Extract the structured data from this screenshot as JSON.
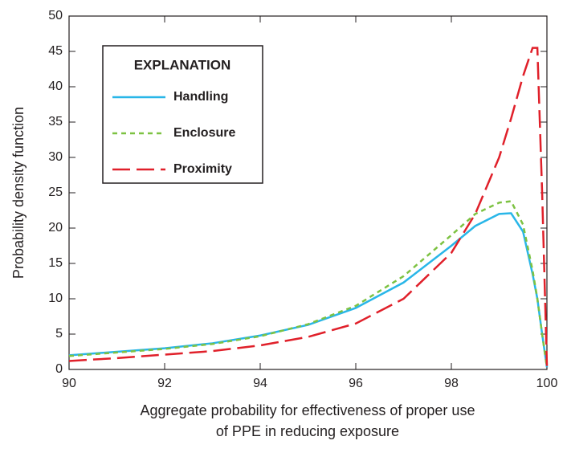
{
  "chart_data": {
    "type": "line",
    "x_label": [
      "Aggregate probability for effectiveness of proper use",
      "of PPE in reducing exposure"
    ],
    "y_label": "Probability density function",
    "legend_title": "EXPLANATION",
    "legend_position": "upper left",
    "x": [
      90,
      91,
      92,
      93,
      94,
      95,
      96,
      97,
      98,
      98.5,
      99,
      99.25,
      99.5,
      99.7,
      99.8,
      99.9,
      100
    ],
    "series": [
      {
        "name": "Handling",
        "color": "#29b6e8",
        "dash": "solid",
        "values": [
          2.0,
          2.5,
          3.0,
          3.7,
          4.8,
          6.3,
          8.7,
          12.3,
          17.5,
          20.3,
          22.0,
          22.1,
          19.5,
          13.5,
          10.0,
          5.0,
          0.3
        ]
      },
      {
        "name": "Enclosure",
        "color": "#7dc242",
        "dash": "short",
        "values": [
          1.9,
          2.4,
          2.9,
          3.6,
          4.7,
          6.4,
          9.0,
          13.2,
          19.0,
          22.0,
          23.6,
          23.8,
          20.5,
          14.0,
          10.0,
          5.0,
          0.3
        ]
      },
      {
        "name": "Proximity",
        "color": "#e0202a",
        "dash": "long",
        "values": [
          1.2,
          1.6,
          2.1,
          2.6,
          3.4,
          4.6,
          6.5,
          10.0,
          16.5,
          22.0,
          30.0,
          35.5,
          41.5,
          45.5,
          45.5,
          25.0,
          0.5
        ]
      }
    ],
    "xlim": [
      90,
      100
    ],
    "xticks": [
      90,
      92,
      94,
      96,
      98,
      100
    ],
    "ylim": [
      0,
      50
    ],
    "yticks": [
      0,
      5,
      10,
      15,
      20,
      25,
      30,
      35,
      40,
      45,
      50
    ]
  }
}
